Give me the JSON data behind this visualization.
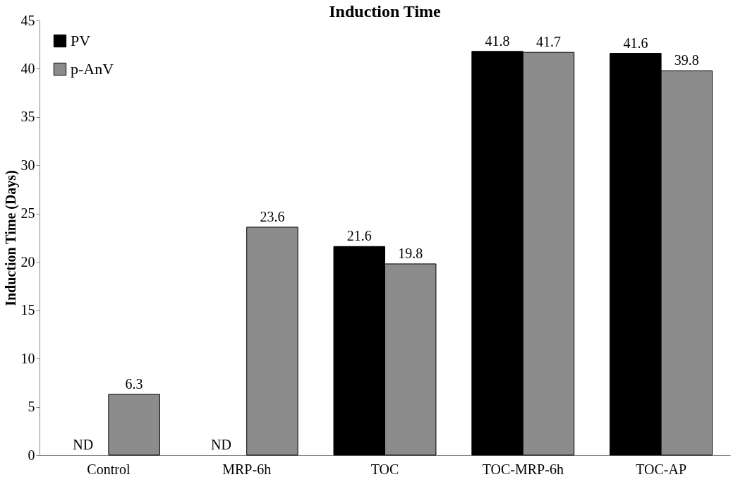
{
  "chart_data": {
    "type": "bar",
    "title": "Induction Time",
    "ylabel": "Induction Time (Days)",
    "categories": [
      "Control",
      "MRP-6h",
      "TOC",
      "TOC-MRP-6h",
      "TOC-AP"
    ],
    "series": [
      {
        "name": "PV",
        "color": "#000000",
        "values": [
          null,
          null,
          21.6,
          41.8,
          41.6
        ],
        "value_labels": [
          "ND",
          "ND",
          "21.6",
          "41.8",
          "41.6"
        ]
      },
      {
        "name": "p-AnV",
        "color": "#8c8c8c",
        "values": [
          6.3,
          23.6,
          19.8,
          41.7,
          39.8
        ],
        "value_labels": [
          "6.3",
          "23.6",
          "19.8",
          "41.7",
          "39.8"
        ]
      }
    ],
    "ylim": [
      0,
      45
    ],
    "yticks": [
      0,
      5,
      10,
      15,
      20,
      25,
      30,
      35,
      40,
      45
    ],
    "grid": false,
    "legend": "top left"
  }
}
